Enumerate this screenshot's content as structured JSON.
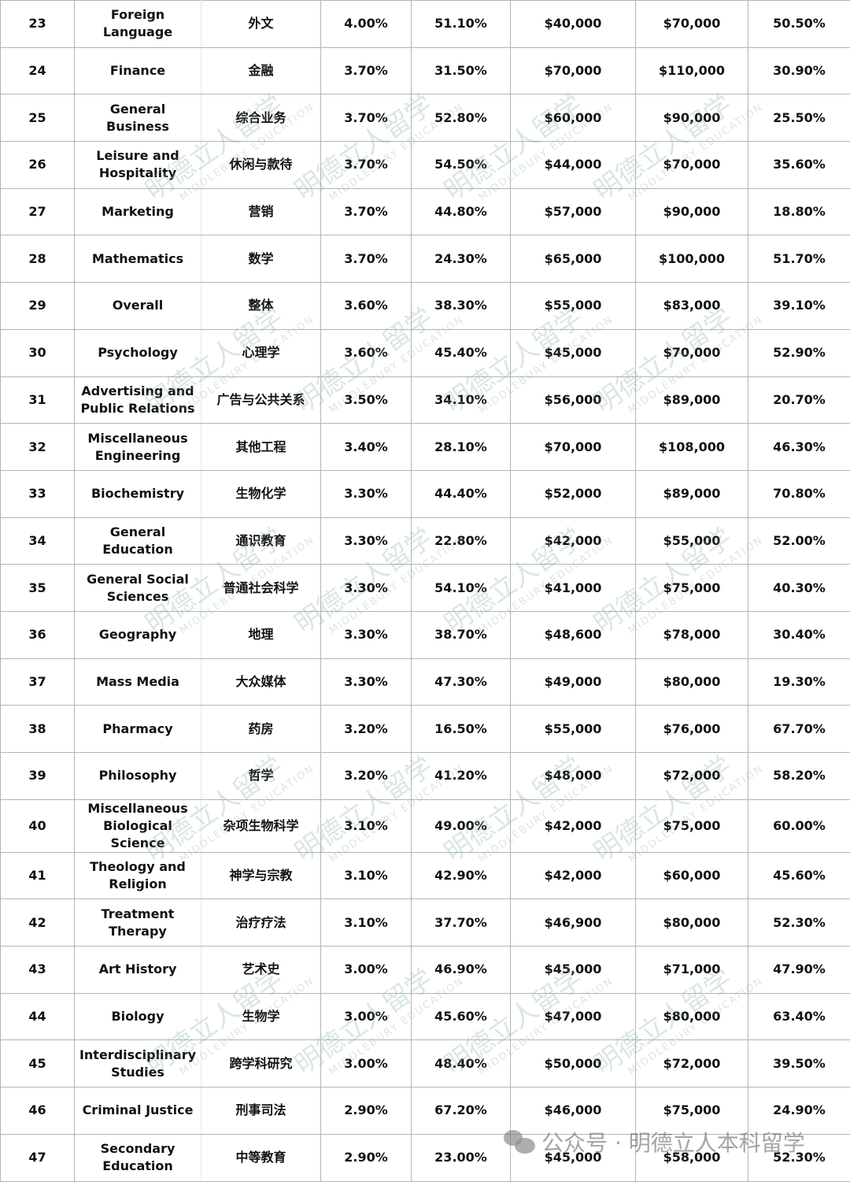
{
  "table": {
    "rows": [
      [
        "23",
        "Foreign Language",
        "外文",
        "4.00%",
        "51.10%",
        "$40,000",
        "$70,000",
        "50.50%"
      ],
      [
        "24",
        "Finance",
        "金融",
        "3.70%",
        "31.50%",
        "$70,000",
        "$110,000",
        "30.90%"
      ],
      [
        "25",
        "General Business",
        "综合业务",
        "3.70%",
        "52.80%",
        "$60,000",
        "$90,000",
        "25.50%"
      ],
      [
        "26",
        "Leisure and Hospitality",
        "休闲与款待",
        "3.70%",
        "54.50%",
        "$44,000",
        "$70,000",
        "35.60%"
      ],
      [
        "27",
        "Marketing",
        "营销",
        "3.70%",
        "44.80%",
        "$57,000",
        "$90,000",
        "18.80%"
      ],
      [
        "28",
        "Mathematics",
        "数学",
        "3.70%",
        "24.30%",
        "$65,000",
        "$100,000",
        "51.70%"
      ],
      [
        "29",
        "Overall",
        "整体",
        "3.60%",
        "38.30%",
        "$55,000",
        "$83,000",
        "39.10%"
      ],
      [
        "30",
        "Psychology",
        "心理学",
        "3.60%",
        "45.40%",
        "$45,000",
        "$70,000",
        "52.90%"
      ],
      [
        "31",
        "Advertising and Public Relations",
        "广告与公共关系",
        "3.50%",
        "34.10%",
        "$56,000",
        "$89,000",
        "20.70%"
      ],
      [
        "32",
        "Miscellaneous Engineering",
        "其他工程",
        "3.40%",
        "28.10%",
        "$70,000",
        "$108,000",
        "46.30%"
      ],
      [
        "33",
        "Biochemistry",
        "生物化学",
        "3.30%",
        "44.40%",
        "$52,000",
        "$89,000",
        "70.80%"
      ],
      [
        "34",
        "General Education",
        "通识教育",
        "3.30%",
        "22.80%",
        "$42,000",
        "$55,000",
        "52.00%"
      ],
      [
        "35",
        "General Social Sciences",
        "普通社会科学",
        "3.30%",
        "54.10%",
        "$41,000",
        "$75,000",
        "40.30%"
      ],
      [
        "36",
        "Geography",
        "地理",
        "3.30%",
        "38.70%",
        "$48,600",
        "$78,000",
        "30.40%"
      ],
      [
        "37",
        "Mass Media",
        "大众媒体",
        "3.30%",
        "47.30%",
        "$49,000",
        "$80,000",
        "19.30%"
      ],
      [
        "38",
        "Pharmacy",
        "药房",
        "3.20%",
        "16.50%",
        "$55,000",
        "$76,000",
        "67.70%"
      ],
      [
        "39",
        "Philosophy",
        "哲学",
        "3.20%",
        "41.20%",
        "$48,000",
        "$72,000",
        "58.20%"
      ],
      [
        "40",
        "Miscellaneous Biological Science",
        "杂项生物科学",
        "3.10%",
        "49.00%",
        "$42,000",
        "$75,000",
        "60.00%"
      ],
      [
        "41",
        "Theology and Religion",
        "神学与宗教",
        "3.10%",
        "42.90%",
        "$42,000",
        "$60,000",
        "45.60%"
      ],
      [
        "42",
        "Treatment Therapy",
        "治疗疗法",
        "3.10%",
        "37.70%",
        "$46,900",
        "$80,000",
        "52.30%"
      ],
      [
        "43",
        "Art History",
        "艺术史",
        "3.00%",
        "46.90%",
        "$45,000",
        "$71,000",
        "47.90%"
      ],
      [
        "44",
        "Biology",
        "生物学",
        "3.00%",
        "45.60%",
        "$47,000",
        "$80,000",
        "63.40%"
      ],
      [
        "45",
        "Interdisciplinary Studies",
        "跨学科研究",
        "3.00%",
        "48.40%",
        "$50,000",
        "$72,000",
        "39.50%"
      ],
      [
        "46",
        "Criminal Justice",
        "刑事司法",
        "2.90%",
        "67.20%",
        "$46,000",
        "$75,000",
        "24.90%"
      ],
      [
        "47",
        "Secondary Education",
        "中等教育",
        "2.90%",
        "23.00%",
        "$45,000",
        "$58,000",
        "52.30%"
      ]
    ]
  },
  "watermark": {
    "cn": "明德立人留学",
    "en": "MIDDLEBURY EDUCATION"
  },
  "footer": {
    "icon": "wechat-icon",
    "text": "公众号 · 明德立人本科留学"
  }
}
